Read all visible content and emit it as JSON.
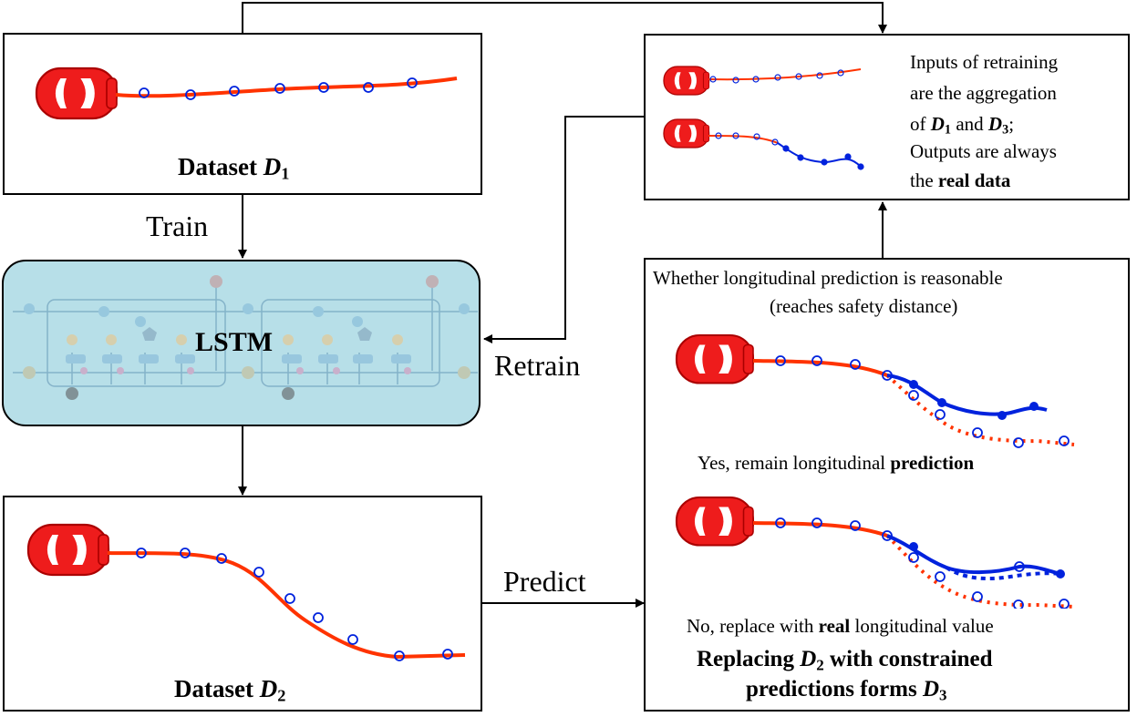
{
  "d1": {
    "label": "Dataset ",
    "var": "D",
    "sub": "1"
  },
  "d2": {
    "label": "Dataset ",
    "var": "D",
    "sub": "2"
  },
  "lstm": {
    "label": "LSTM"
  },
  "arrows": {
    "train": "Train",
    "retrain": "Retrain",
    "predict": "Predict"
  },
  "retrain_note": {
    "line1": "Inputs of retraining",
    "line2": "are the aggregation",
    "line3_a": "of ",
    "line3_b": " and ",
    "line3_c": ";",
    "line4": "Outputs are always",
    "line5_a": "the ",
    "line5_b": "real data",
    "var_a": "D",
    "sub_a": "1",
    "var_b": "D",
    "sub_b": "3"
  },
  "check": {
    "question_line1": "Whether longitudinal  prediction is reasonable",
    "question_line2": "(reaches safety distance)",
    "yes_a": "Yes, remain longitudinal ",
    "yes_b": "prediction",
    "no_a": "No, replace with ",
    "no_b": "real",
    "no_c": " longitudinal value",
    "result_line1_a": "Replacing ",
    "result_line1_var": "D",
    "result_line1_sub": "2",
    "result_line1_b": " with constrained",
    "result_line2_a": "predictions forms ",
    "result_line2_var": "D",
    "result_line2_sub": "3"
  },
  "colors": {
    "car": "#ee1c1c",
    "trajectory": "#ff3300",
    "prediction": "#0022dd",
    "lstm_bg": "#b7dfe8"
  },
  "icons": [
    "car-icon",
    "lstm-cell-icon"
  ]
}
